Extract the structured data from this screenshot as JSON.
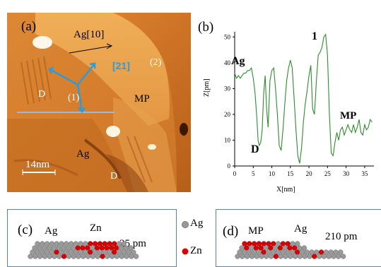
{
  "panel_a": {
    "label": "(a)",
    "direction_ag": "Ag[10]",
    "direction_21": "[21]",
    "region_labels": [
      "(2)",
      "(1)",
      "D",
      "MP",
      "Ag",
      "D"
    ],
    "scale_bar": "14nm"
  },
  "panel_b": {
    "label": "(b)",
    "annotations": [
      "Ag",
      "1",
      "D",
      "MP"
    ]
  },
  "panel_c": {
    "label": "(c)",
    "left": "Ag",
    "right": "Zn",
    "height": "25 pm"
  },
  "legend": {
    "ag": "Ag",
    "zn": "Zn",
    "ag_color": "#9a9a9a",
    "zn_color": "#d80000"
  },
  "panel_d": {
    "label": "(d)",
    "left": "MP",
    "right": "Ag",
    "height": "210 pm"
  },
  "chart_data": {
    "type": "line",
    "title": "",
    "xlabel": "X[nm]",
    "ylabel": "Z[pm]",
    "xlim": [
      0,
      37.5
    ],
    "ylim": [
      0,
      52
    ],
    "xticks": [
      0,
      5,
      10,
      15,
      20,
      25,
      30,
      35
    ],
    "yticks": [
      0,
      10,
      20,
      30,
      40,
      50
    ],
    "color": "#2e8b2e",
    "series": [
      {
        "x": [
          0,
          0.5,
          1,
          1.5,
          2,
          2.5,
          3,
          3.5,
          4,
          4.5,
          5,
          5.5,
          6,
          6.3,
          6.6,
          7,
          7.4,
          7.8,
          8.2,
          8.6,
          9,
          9.5,
          10,
          10.5,
          11,
          11.5,
          12,
          12.5,
          13,
          13.5,
          14,
          14.5,
          15,
          15.5,
          16,
          16.5,
          17,
          17.5,
          18,
          18.5,
          19,
          19.5,
          20,
          20.5,
          21,
          21.5,
          22,
          22.5,
          23,
          23.5,
          24,
          24.5,
          25,
          25.5,
          26,
          26.5,
          27,
          27.5,
          28,
          28.5,
          29,
          29.5,
          30,
          30.5,
          31,
          31.5,
          32,
          32.5,
          33,
          33.5,
          34,
          34.5,
          35,
          35.5,
          36,
          36.5,
          37
        ],
        "y": [
          36,
          34,
          35,
          34,
          35,
          36,
          36,
          37,
          37,
          38,
          34,
          28,
          18,
          10,
          8,
          9,
          14,
          28,
          35,
          22,
          15,
          33,
          37,
          38,
          30,
          20,
          8,
          6,
          14,
          24,
          33,
          38,
          41,
          38,
          26,
          14,
          4,
          1,
          7,
          17,
          24,
          29,
          35,
          39,
          22,
          20,
          33,
          43,
          44,
          46,
          50,
          51,
          43,
          20,
          5,
          4,
          9,
          13,
          10,
          14,
          15,
          12,
          14,
          16,
          14,
          13,
          16,
          13,
          15,
          18,
          13,
          12,
          16,
          14,
          15,
          18,
          17
        ]
      }
    ]
  }
}
